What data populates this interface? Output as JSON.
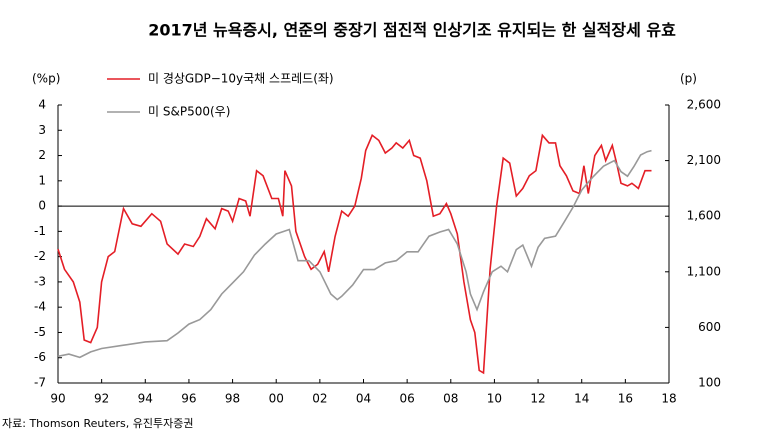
{
  "chart_data": {
    "type": "line",
    "title": "2017년 뉴욕증시, 연준의 중장기 점진적 인상기조 유지되는 한 실적장세 유효",
    "y_label": "(%p)",
    "y2_label": "(p)",
    "source": "자료: Thomson Reuters, 유진투자증권",
    "xlim": [
      1990,
      2018
    ],
    "xticks": [
      {
        "value": 1990,
        "label": "90"
      },
      {
        "value": 1992,
        "label": "92"
      },
      {
        "value": 1994,
        "label": "94"
      },
      {
        "value": 1996,
        "label": "96"
      },
      {
        "value": 1998,
        "label": "98"
      },
      {
        "value": 2000,
        "label": "00"
      },
      {
        "value": 2002,
        "label": "02"
      },
      {
        "value": 2004,
        "label": "04"
      },
      {
        "value": 2006,
        "label": "06"
      },
      {
        "value": 2008,
        "label": "08"
      },
      {
        "value": 2010,
        "label": "10"
      },
      {
        "value": 2012,
        "label": "12"
      },
      {
        "value": 2014,
        "label": "14"
      },
      {
        "value": 2016,
        "label": "16"
      },
      {
        "value": 2018,
        "label": "18"
      }
    ],
    "ylim": [
      -7,
      4
    ],
    "yticks": [
      -7,
      -6,
      -5,
      -4,
      -3,
      -2,
      -1,
      0,
      1,
      2,
      3,
      4
    ],
    "y2lim": [
      100,
      2600
    ],
    "y2ticks": [
      100,
      600,
      {
        "value": 1100,
        "label": "1,100"
      },
      {
        "value": 1600,
        "label": "1,600"
      },
      {
        "value": 2100,
        "label": "2,100"
      },
      {
        "value": 2600,
        "label": "2,600"
      }
    ],
    "series": [
      {
        "name": "미 경상GDP−10y국채 스프레드(좌)",
        "color": "#e41e26",
        "x": [
          1990.0,
          1990.3,
          1990.7,
          1991.0,
          1991.2,
          1991.5,
          1991.8,
          1992.0,
          1992.3,
          1992.6,
          1993.0,
          1993.4,
          1993.8,
          1994.3,
          1994.7,
          1995.0,
          1995.5,
          1995.8,
          1996.2,
          1996.5,
          1996.8,
          1997.2,
          1997.5,
          1997.8,
          1998.0,
          1998.3,
          1998.6,
          1998.8,
          1999.1,
          1999.4,
          1999.8,
          2000.1,
          2000.3,
          2000.4,
          2000.7,
          2000.9,
          2001.3,
          2001.6,
          2001.9,
          2002.2,
          2002.4,
          2002.7,
          2003.0,
          2003.3,
          2003.6,
          2003.9,
          2004.1,
          2004.4,
          2004.7,
          2005.0,
          2005.3,
          2005.5,
          2005.8,
          2006.1,
          2006.3,
          2006.6,
          2006.9,
          2007.2,
          2007.5,
          2007.8,
          2008.0,
          2008.3,
          2008.6,
          2008.9,
          2009.1,
          2009.3,
          2009.5,
          2009.8,
          2010.1,
          2010.4,
          2010.7,
          2011.0,
          2011.3,
          2011.6,
          2011.9,
          2012.2,
          2012.5,
          2012.8,
          2013.0,
          2013.3,
          2013.6,
          2013.9,
          2014.1,
          2014.3,
          2014.6,
          2014.9,
          2015.1,
          2015.4,
          2015.6,
          2015.8,
          2016.1,
          2016.3,
          2016.6,
          2016.9,
          2017.2
        ],
        "values": [
          -1.7,
          -2.5,
          -3.0,
          -3.8,
          -5.3,
          -5.4,
          -4.8,
          -3.0,
          -2.0,
          -1.8,
          -0.1,
          -0.7,
          -0.8,
          -0.3,
          -0.6,
          -1.5,
          -1.9,
          -1.5,
          -1.6,
          -1.2,
          -0.5,
          -0.9,
          -0.1,
          -0.2,
          -0.6,
          0.3,
          0.2,
          -0.4,
          1.4,
          1.2,
          0.3,
          0.3,
          -0.4,
          1.4,
          0.8,
          -1.0,
          -2.0,
          -2.5,
          -2.3,
          -1.8,
          -2.6,
          -1.2,
          -0.2,
          -0.4,
          0.0,
          1.1,
          2.2,
          2.8,
          2.6,
          2.1,
          2.3,
          2.5,
          2.3,
          2.6,
          2.0,
          1.9,
          1.0,
          -0.4,
          -0.3,
          0.1,
          -0.3,
          -1.1,
          -3.0,
          -4.5,
          -5.0,
          -6.5,
          -6.6,
          -2.5,
          0.0,
          1.9,
          1.7,
          0.4,
          0.7,
          1.2,
          1.4,
          2.8,
          2.5,
          2.5,
          1.6,
          1.2,
          0.6,
          0.5,
          1.6,
          0.5,
          2.0,
          2.4,
          1.8,
          2.4,
          1.7,
          0.9,
          0.8,
          0.9,
          0.7,
          1.4,
          1.4
        ]
      },
      {
        "name": "미 S&P500(우)",
        "color": "#999999",
        "axis": "y2",
        "x": [
          1990.0,
          1990.5,
          1991.0,
          1991.5,
          1992.0,
          1993.0,
          1994.0,
          1995.0,
          1995.5,
          1996.0,
          1996.5,
          1997.0,
          1997.5,
          1998.0,
          1998.5,
          1999.0,
          1999.5,
          2000.0,
          2000.6,
          2001.0,
          2001.5,
          2002.0,
          2002.5,
          2002.8,
          2003.0,
          2003.5,
          2004.0,
          2004.5,
          2005.0,
          2005.5,
          2006.0,
          2006.5,
          2007.0,
          2007.5,
          2007.9,
          2008.3,
          2008.7,
          2008.9,
          2009.2,
          2009.5,
          2009.9,
          2010.3,
          2010.6,
          2011.0,
          2011.3,
          2011.7,
          2012.0,
          2012.3,
          2012.8,
          2013.2,
          2013.6,
          2014.0,
          2014.5,
          2015.0,
          2015.5,
          2015.8,
          2016.1,
          2016.4,
          2016.7,
          2017.0,
          2017.2
        ],
        "values": [
          340,
          360,
          330,
          380,
          410,
          440,
          470,
          480,
          550,
          630,
          670,
          760,
          900,
          1000,
          1100,
          1250,
          1350,
          1440,
          1480,
          1200,
          1200,
          1100,
          900,
          850,
          880,
          980,
          1120,
          1120,
          1180,
          1200,
          1280,
          1280,
          1420,
          1458,
          1480,
          1350,
          1100,
          900,
          760,
          920,
          1100,
          1150,
          1100,
          1300,
          1340,
          1150,
          1320,
          1400,
          1420,
          1550,
          1680,
          1835,
          1950,
          2050,
          2100,
          2000,
          1960,
          2050,
          2150,
          2180,
          2190
        ]
      }
    ]
  }
}
